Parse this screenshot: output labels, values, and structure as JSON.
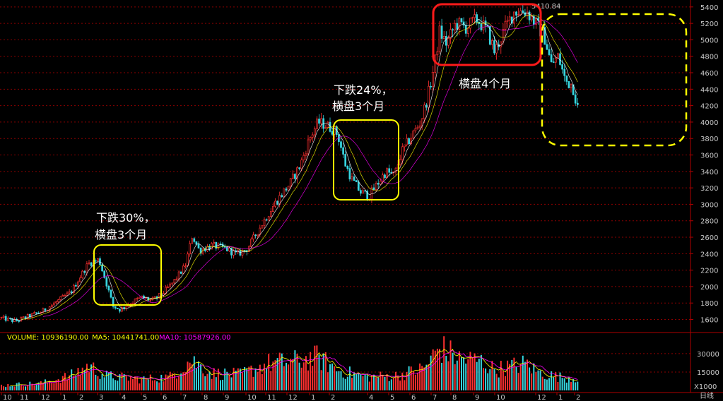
{
  "chart_data": {
    "type": "candlestick",
    "colors": {
      "background": "#000000",
      "up": "#ff3030",
      "down": "#36d6e0",
      "grid": "#8b0000",
      "axis": "#b00000",
      "ma5": "#ffffff",
      "ma10": "#ffff00",
      "ma20": "#ff00ff",
      "yellow_box": "#ffff00",
      "red_box": "#ff1a1a"
    },
    "price_axis": {
      "ylim": [
        1450,
        5450
      ],
      "ticks": [
        1600,
        1800,
        2000,
        2200,
        2400,
        2600,
        2800,
        3000,
        3200,
        3400,
        3600,
        3800,
        4000,
        4200,
        4400,
        4600,
        4800,
        5000,
        5200,
        5400
      ]
    },
    "volume_axis": {
      "ticks": [
        15000,
        30000
      ],
      "unit_label": "X1000"
    },
    "x_axis": {
      "labels": [
        "10",
        "11",
        "12",
        "1",
        "2",
        "3",
        "4",
        "5",
        "6",
        "7",
        "8",
        "9",
        "10",
        "11",
        "12",
        "1",
        "2",
        "4",
        "5",
        "6",
        "7",
        "8",
        "9",
        "10",
        "12",
        "1",
        "2"
      ],
      "period": "日线"
    },
    "price_path": [
      [
        0,
        1620
      ],
      [
        22,
        1580
      ],
      [
        60,
        1700
      ],
      [
        100,
        1930
      ],
      [
        125,
        2280
      ],
      [
        140,
        2330
      ],
      [
        152,
        2000
      ],
      [
        160,
        1760
      ],
      [
        170,
        1720
      ],
      [
        185,
        1800
      ],
      [
        200,
        1870
      ],
      [
        215,
        1830
      ],
      [
        228,
        1900
      ],
      [
        245,
        2050
      ],
      [
        262,
        2250
      ],
      [
        272,
        2620
      ],
      [
        282,
        2440
      ],
      [
        300,
        2500
      ],
      [
        320,
        2460
      ],
      [
        335,
        2390
      ],
      [
        350,
        2460
      ],
      [
        365,
        2680
      ],
      [
        375,
        2820
      ],
      [
        388,
        3000
      ],
      [
        410,
        3250
      ],
      [
        425,
        3480
      ],
      [
        438,
        3800
      ],
      [
        450,
        4000
      ],
      [
        462,
        3960
      ],
      [
        470,
        3920
      ],
      [
        478,
        3850
      ],
      [
        488,
        3500
      ],
      [
        498,
        3300
      ],
      [
        510,
        3150
      ],
      [
        522,
        3100
      ],
      [
        534,
        3250
      ],
      [
        546,
        3400
      ],
      [
        558,
        3350
      ],
      [
        568,
        3630
      ],
      [
        580,
        3800
      ],
      [
        595,
        4000
      ],
      [
        605,
        4300
      ],
      [
        615,
        4700
      ],
      [
        622,
        5100
      ],
      [
        632,
        4950
      ],
      [
        645,
        5200
      ],
      [
        660,
        5150
      ],
      [
        675,
        5250
      ],
      [
        690,
        5100
      ],
      [
        700,
        4850
      ],
      [
        715,
        5150
      ],
      [
        728,
        5350
      ],
      [
        745,
        5350
      ],
      [
        758,
        5200
      ],
      [
        770,
        5050
      ],
      [
        780,
        4700
      ],
      [
        790,
        4800
      ],
      [
        800,
        4500
      ],
      [
        810,
        4450
      ],
      [
        818,
        4150
      ]
    ],
    "volume_path": [
      [
        0,
        4000
      ],
      [
        60,
        6000
      ],
      [
        100,
        12000
      ],
      [
        125,
        20000
      ],
      [
        150,
        12000
      ],
      [
        200,
        9000
      ],
      [
        240,
        11000
      ],
      [
        270,
        25000
      ],
      [
        300,
        14000
      ],
      [
        340,
        13000
      ],
      [
        380,
        22000
      ],
      [
        420,
        24000
      ],
      [
        450,
        27000
      ],
      [
        480,
        16000
      ],
      [
        520,
        11000
      ],
      [
        560,
        12000
      ],
      [
        600,
        18000
      ],
      [
        622,
        35000
      ],
      [
        650,
        26000
      ],
      [
        680,
        24000
      ],
      [
        700,
        17000
      ],
      [
        745,
        22000
      ],
      [
        760,
        15000
      ],
      [
        790,
        11000
      ],
      [
        818,
        10000
      ]
    ],
    "max_label": "5410.84",
    "legend": {
      "volume": "VOLUME: 10936190.00",
      "ma5": "MA5: 10441741.00",
      "ma10": "MA10: 10587926.00"
    },
    "annotations": [
      {
        "line1": "下跌30%，",
        "line2": "横盘3个月"
      },
      {
        "line1": "下跌24%，",
        "line2": "横盘3个月"
      },
      {
        "line1": "横盘4个月"
      }
    ]
  }
}
